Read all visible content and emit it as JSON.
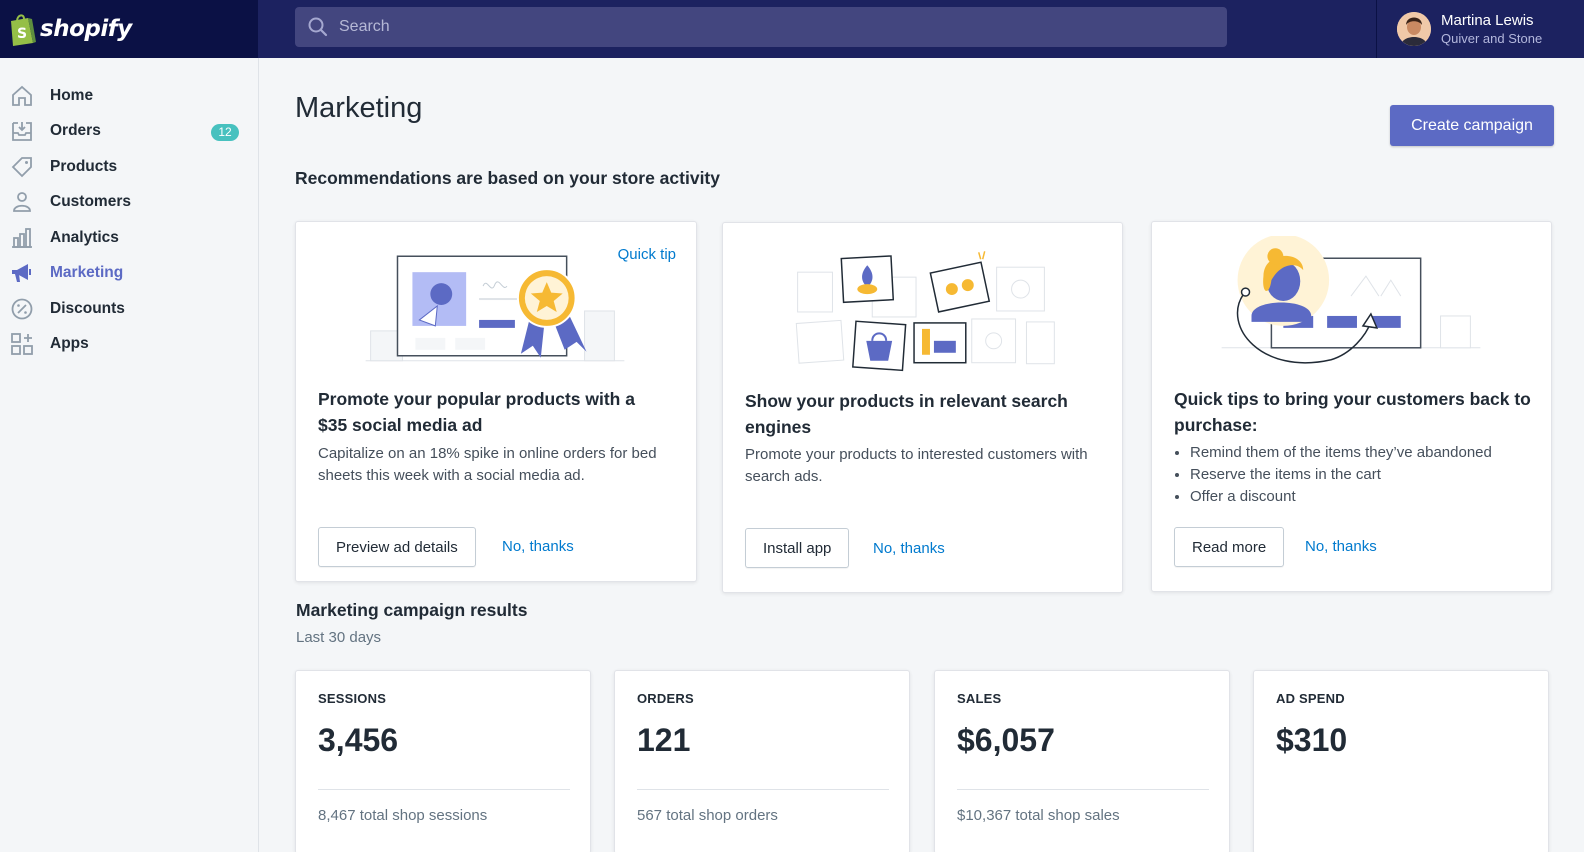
{
  "brand": {
    "name": "shopify"
  },
  "search": {
    "placeholder": "Search"
  },
  "user": {
    "name": "Martina Lewis",
    "store": "Quiver and Stone"
  },
  "sidebar": {
    "items": [
      {
        "label": "Home",
        "icon": "home-icon"
      },
      {
        "label": "Orders",
        "icon": "orders-icon",
        "badge": "12"
      },
      {
        "label": "Products",
        "icon": "tag-icon"
      },
      {
        "label": "Customers",
        "icon": "person-icon"
      },
      {
        "label": "Analytics",
        "icon": "bar-chart-icon"
      },
      {
        "label": "Marketing",
        "icon": "megaphone-icon",
        "active": true
      },
      {
        "label": "Discounts",
        "icon": "percent-icon"
      },
      {
        "label": "Apps",
        "icon": "apps-grid-icon"
      }
    ]
  },
  "page": {
    "title": "Marketing",
    "create_button": "Create campaign",
    "recommendations_heading": "Recommendations are based on your store activity"
  },
  "cards": [
    {
      "tag": "Quick tip",
      "title": "Promote your popular products with a $35 social media ad",
      "body": "Capitalize on an 18% spike in online orders for bed sheets this week with a social media ad.",
      "button": "Preview ad details",
      "dismiss": "No, thanks"
    },
    {
      "title": "Show your products in relevant search engines",
      "body": "Promote your products to interested customers with search ads.",
      "button": "Install app",
      "dismiss": "No, thanks"
    },
    {
      "title": "Quick tips to bring your customers back to purchase:",
      "bullets": [
        "Remind them of the items they’ve abandoned",
        "Reserve the items in the cart",
        "Offer a discount"
      ],
      "button": "Read more",
      "dismiss": "No, thanks"
    }
  ],
  "results": {
    "title": "Marketing campaign results",
    "period": "Last 30 days",
    "stats": [
      {
        "label": "SESSIONS",
        "value": "3,456",
        "total": "8,467 total shop sessions"
      },
      {
        "label": "ORDERS",
        "value": "121",
        "total": "567 total shop orders"
      },
      {
        "label": "SALES",
        "value": "$6,057",
        "total": "$10,367 total shop sales"
      },
      {
        "label": "AD SPEND",
        "value": "$310",
        "total": ""
      }
    ]
  },
  "colors": {
    "topbar": "#1c2260",
    "logo_bg": "#0b1145",
    "accent": "#5c6ac4",
    "link": "#007ace",
    "badge": "#47c1bf",
    "illustration_yellow": "#f6b933"
  }
}
